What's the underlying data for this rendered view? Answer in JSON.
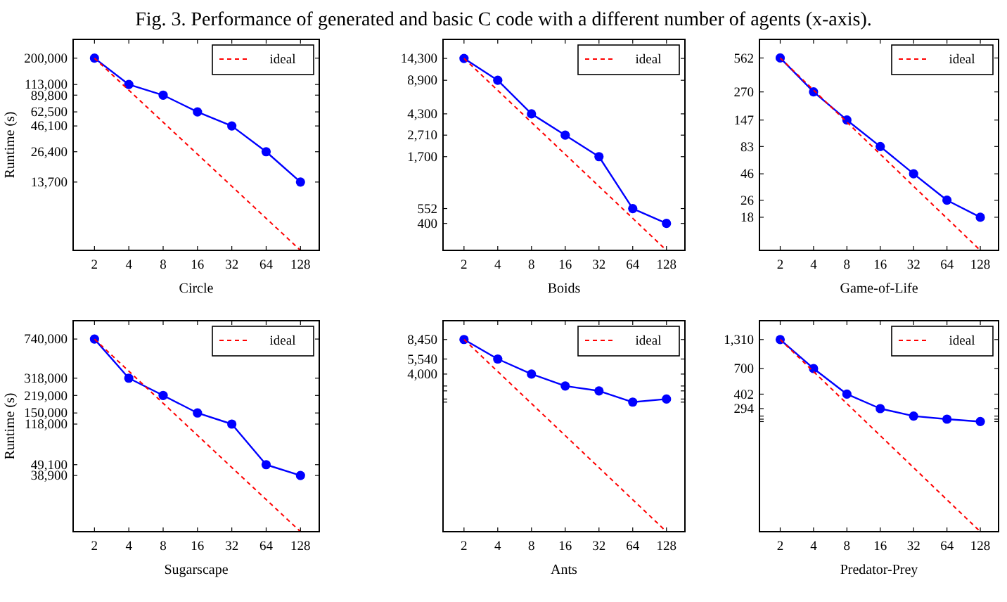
{
  "chart_data": [
    {
      "type": "line",
      "title": "Fig. 3. Performance of generated and basic C code with a different number of agents (x-axis).",
      "xlabel": "Circle",
      "ylabel": "Runtime (s)",
      "log": "xy",
      "legend": "top right",
      "x": [
        2,
        4,
        8,
        16,
        32,
        64,
        128
      ],
      "xlim": [
        1.3,
        187
      ],
      "xticks": [
        2,
        4,
        8,
        16,
        32,
        64,
        128
      ],
      "ylim": [
        3125,
        300000
      ],
      "yticks": [
        {
          "value": 200000,
          "label": "200,000"
        },
        {
          "value": 113000,
          "label": "113,000"
        },
        {
          "value": 89800,
          "label": "89,800"
        },
        {
          "value": 62500,
          "label": "62,500"
        },
        {
          "value": 46100,
          "label": "46,100"
        },
        {
          "value": 26400,
          "label": "26,400"
        },
        {
          "value": 13700,
          "label": "13,700"
        }
      ],
      "series": [
        {
          "color": "#0000ff",
          "marker": "circle",
          "line_style": "solid",
          "values": [
            200000,
            113000,
            89800,
            62500,
            46100,
            26400,
            13700
          ]
        },
        {
          "name": "ideal",
          "color": "#ff0000",
          "marker": "none",
          "line_style": "dashed",
          "values": [
            200000,
            100000,
            50000,
            25000,
            12500,
            6250,
            3125
          ]
        }
      ]
    },
    {
      "type": "line",
      "xlabel": "Boids",
      "log": "xy",
      "legend": "top right",
      "x": [
        2,
        4,
        8,
        16,
        32,
        64,
        128
      ],
      "xlim": [
        1.3,
        187
      ],
      "xticks": [
        2,
        4,
        8,
        16,
        32,
        64,
        128
      ],
      "ylim": [
        223,
        21600
      ],
      "yticks": [
        {
          "value": 14300,
          "label": "14,300"
        },
        {
          "value": 8900,
          "label": "8,900"
        },
        {
          "value": 4300,
          "label": "4,300"
        },
        {
          "value": 2710,
          "label": "2,710"
        },
        {
          "value": 1700,
          "label": "1,700"
        },
        552,
        400
      ],
      "series": [
        {
          "color": "#0000ff",
          "marker": "circle",
          "line_style": "solid",
          "values": [
            14300,
            8900,
            4300,
            2710,
            1700,
            552,
            400
          ]
        },
        {
          "name": "ideal",
          "color": "#ff0000",
          "marker": "none",
          "line_style": "dashed",
          "values": [
            14300,
            7150,
            3575,
            1788,
            894,
            447,
            223
          ]
        }
      ]
    },
    {
      "type": "line",
      "xlabel": "Game-of-Life",
      "log": "xy",
      "legend": "top right",
      "x": [
        2,
        4,
        8,
        16,
        32,
        64,
        128
      ],
      "xlim": [
        1.3,
        187
      ],
      "xticks": [
        2,
        4,
        8,
        16,
        32,
        64,
        128
      ],
      "ylim": [
        8.8,
        840
      ],
      "yticks": [
        562,
        270,
        147,
        83,
        46,
        26,
        18
      ],
      "series": [
        {
          "color": "#0000ff",
          "marker": "circle",
          "line_style": "solid",
          "values": [
            562,
            270,
            147,
            83,
            46,
            26,
            18
          ]
        },
        {
          "name": "ideal",
          "color": "#ff0000",
          "marker": "none",
          "line_style": "dashed",
          "values": [
            562,
            281,
            140.5,
            70.3,
            35.1,
            17.6,
            8.8
          ]
        }
      ]
    },
    {
      "type": "line",
      "xlabel": "Sugarscape",
      "ylabel": "Runtime (s)",
      "log": "xy",
      "legend": "top right",
      "x": [
        2,
        4,
        8,
        16,
        32,
        64,
        128
      ],
      "xlim": [
        1.3,
        187
      ],
      "xticks": [
        2,
        4,
        8,
        16,
        32,
        64,
        128
      ],
      "ylim": [
        11560,
        1100000
      ],
      "yticks": [
        {
          "value": 740000,
          "label": "740,000"
        },
        {
          "value": 318000,
          "label": "318,000"
        },
        {
          "value": 219000,
          "label": "219,000"
        },
        {
          "value": 150000,
          "label": "150,000"
        },
        {
          "value": 118000,
          "label": "118,000"
        },
        {
          "value": 49100,
          "label": "49,100"
        },
        {
          "value": 38900,
          "label": "38,900"
        }
      ],
      "series": [
        {
          "color": "#0000ff",
          "marker": "circle",
          "line_style": "solid",
          "values": [
            740000,
            318000,
            219000,
            150000,
            118000,
            49100,
            38900
          ]
        },
        {
          "name": "ideal",
          "color": "#ff0000",
          "marker": "none",
          "line_style": "dashed",
          "values": [
            740000,
            370000,
            185000,
            92500,
            46250,
            23125,
            11560
          ]
        }
      ]
    },
    {
      "type": "line",
      "xlabel": "Ants",
      "log": "xy",
      "legend": "top right",
      "x": [
        2,
        4,
        8,
        16,
        32,
        64,
        128
      ],
      "xlim": [
        1.3,
        187
      ],
      "xticks": [
        2,
        4,
        8,
        16,
        32,
        64,
        128
      ],
      "ylim": [
        132,
        12700
      ],
      "yticks": [
        {
          "value": 8450,
          "label": "8,450"
        },
        {
          "value": 5540,
          "label": "5,540"
        },
        {
          "value": 4000,
          "label": "4,000"
        },
        {
          "value": 3090,
          "label": null
        },
        {
          "value": 2780,
          "label": null
        },
        {
          "value": 2330,
          "label": null
        },
        {
          "value": 2180,
          "label": null
        }
      ],
      "series": [
        {
          "color": "#0000ff",
          "marker": "circle",
          "line_style": "solid",
          "values": [
            8450,
            5540,
            4000,
            3090,
            2780,
            2180,
            2330
          ]
        },
        {
          "name": "ideal",
          "color": "#ff0000",
          "marker": "none",
          "line_style": "dashed",
          "values": [
            8450,
            4225,
            2113,
            1056,
            528,
            264,
            132
          ]
        }
      ]
    },
    {
      "type": "line",
      "xlabel": "Predator-Prey",
      "log": "xy",
      "legend": "top right",
      "x": [
        2,
        4,
        8,
        16,
        32,
        64,
        128
      ],
      "xlim": [
        1.3,
        187
      ],
      "xticks": [
        2,
        4,
        8,
        16,
        32,
        64,
        128
      ],
      "ylim": [
        20.5,
        1970
      ],
      "yticks": [
        {
          "value": 1310,
          "label": "1,310"
        },
        700,
        402,
        294,
        {
          "value": 250,
          "label": null
        },
        {
          "value": 234,
          "label": null
        },
        {
          "value": 222,
          "label": null
        }
      ],
      "series": [
        {
          "color": "#0000ff",
          "marker": "circle",
          "line_style": "solid",
          "values": [
            1310,
            700,
            402,
            294,
            250,
            234,
            222
          ]
        },
        {
          "name": "ideal",
          "color": "#ff0000",
          "marker": "none",
          "line_style": "dashed",
          "values": [
            1310,
            655,
            327.5,
            163.8,
            81.9,
            40.9,
            20.5
          ]
        }
      ]
    }
  ]
}
